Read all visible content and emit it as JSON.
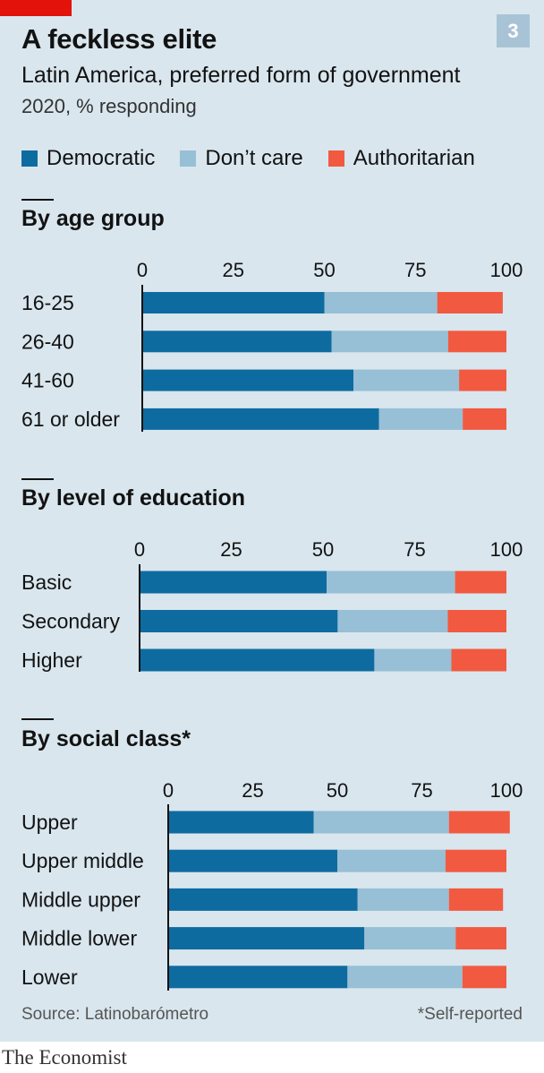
{
  "header": {
    "title": "A feckless elite",
    "badge": "3",
    "subtitle": "Latin America, preferred form of government",
    "subsubtitle": "2020, % responding"
  },
  "legend": [
    {
      "label": "Democratic",
      "color": "#0e6ba0"
    },
    {
      "label": "Don’t care",
      "color": "#97bfd6"
    },
    {
      "label": "Authoritarian",
      "color": "#f15a40"
    }
  ],
  "chart_data": [
    {
      "type": "bar",
      "orientation": "horizontal",
      "stacked": true,
      "title": "By age group",
      "xlim": [
        0,
        100
      ],
      "xticks": [
        "0",
        "25",
        "50",
        "75",
        "100"
      ],
      "categories": [
        "16-25",
        "26-40",
        "41-60",
        "61 or older"
      ],
      "series": [
        {
          "name": "Democratic",
          "values": [
            50,
            52,
            58,
            65
          ]
        },
        {
          "name": "Don’t care",
          "values": [
            31,
            32,
            29,
            23
          ]
        },
        {
          "name": "Authoritarian",
          "values": [
            18,
            16,
            13,
            12
          ]
        }
      ]
    },
    {
      "type": "bar",
      "orientation": "horizontal",
      "stacked": true,
      "title": "By level of education",
      "xlim": [
        0,
        100
      ],
      "xticks": [
        "0",
        "25",
        "50",
        "75",
        "100"
      ],
      "categories": [
        "Basic",
        "Secondary",
        "Higher"
      ],
      "series": [
        {
          "name": "Democratic",
          "values": [
            51,
            54,
            64
          ]
        },
        {
          "name": "Don’t care",
          "values": [
            35,
            30,
            21
          ]
        },
        {
          "name": "Authoritarian",
          "values": [
            14,
            16,
            15
          ]
        }
      ]
    },
    {
      "type": "bar",
      "orientation": "horizontal",
      "stacked": true,
      "title": "By social class*",
      "xlim": [
        0,
        100
      ],
      "xticks": [
        "0",
        "25",
        "50",
        "75",
        "100"
      ],
      "categories": [
        "Upper",
        "Upper middle",
        "Middle upper",
        "Middle lower",
        "Lower"
      ],
      "series": [
        {
          "name": "Democratic",
          "values": [
            43,
            50,
            56,
            58,
            53
          ]
        },
        {
          "name": "Don’t care",
          "values": [
            40,
            32,
            27,
            27,
            34
          ]
        },
        {
          "name": "Authoritarian",
          "values": [
            18,
            18,
            16,
            15,
            13
          ]
        }
      ]
    }
  ],
  "footer": {
    "source": "Source: Latinobarómetro",
    "note": "*Self-reported",
    "brand": "The Economist"
  }
}
